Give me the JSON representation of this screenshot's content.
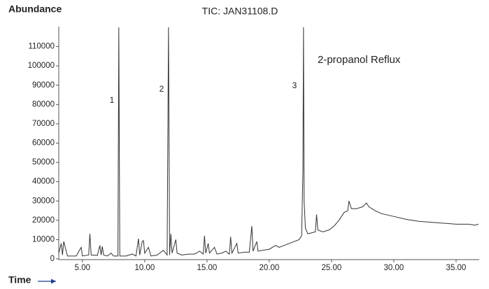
{
  "chart_data": {
    "type": "line",
    "title": "TIC: JAN31108.D",
    "y_label": "Abundance",
    "x_label": "Time",
    "color": "#333333",
    "axis_label_color": "#1f3f8f",
    "annotations": [
      "1",
      "2",
      "3",
      "2-propanol Reflux"
    ],
    "xlim": [
      3.1,
      36.8
    ],
    "ylim": [
      0,
      120000
    ],
    "xticks": [
      {
        "value": 5,
        "label": "5.00"
      },
      {
        "value": 10,
        "label": "10.00"
      },
      {
        "value": 15,
        "label": "15.00"
      },
      {
        "value": 20,
        "label": "20.00"
      },
      {
        "value": 25,
        "label": "25.00"
      },
      {
        "value": 30,
        "label": "30.00"
      },
      {
        "value": 35,
        "label": "35.00"
      }
    ],
    "yticks": [
      0,
      10000,
      20000,
      30000,
      40000,
      50000,
      60000,
      70000,
      80000,
      90000,
      100000,
      110000
    ],
    "x": [
      3.1,
      3.3,
      3.4,
      3.5,
      3.8,
      4.5,
      4.9,
      5.0,
      5.5,
      5.6,
      5.7,
      6.2,
      6.4,
      6.5,
      6.6,
      6.7,
      7.0,
      7.3,
      7.5,
      7.85,
      7.92,
      8.0,
      8.5,
      9.0,
      9.3,
      9.5,
      9.6,
      9.8,
      9.9,
      10.0,
      10.3,
      10.5,
      11.0,
      11.5,
      11.8,
      11.91,
      12.0,
      12.1,
      12.2,
      12.5,
      12.6,
      13.0,
      13.5,
      14.0,
      14.4,
      14.7,
      14.8,
      14.9,
      15.1,
      15.2,
      15.6,
      15.8,
      16.2,
      16.5,
      16.8,
      16.9,
      17.0,
      17.4,
      17.5,
      18.0,
      18.4,
      18.6,
      18.7,
      19.0,
      19.1,
      19.5,
      20.0,
      20.5,
      20.8,
      21.2,
      21.6,
      22.0,
      22.4,
      22.6,
      22.7,
      22.75,
      22.8,
      22.9,
      23.1,
      23.4,
      23.7,
      23.8,
      23.9,
      24.3,
      24.8,
      25.2,
      25.6,
      26.0,
      26.3,
      26.4,
      26.6,
      27.0,
      27.5,
      27.8,
      28.0,
      28.5,
      29.0,
      30.0,
      31.0,
      32.0,
      33.0,
      34.0,
      35.0,
      36.0,
      36.5,
      36.8
    ],
    "values": [
      3000,
      8000,
      2000,
      9000,
      1500,
      1500,
      6000,
      1500,
      2000,
      13000,
      2000,
      1800,
      7000,
      2000,
      6500,
      2000,
      1500,
      3000,
      1500,
      1500,
      120000,
      1500,
      1500,
      2500,
      1500,
      10500,
      2000,
      9000,
      9500,
      3000,
      6000,
      1500,
      2000,
      4500,
      2000,
      120000,
      2000,
      13000,
      3000,
      10000,
      3000,
      2000,
      2500,
      2500,
      4000,
      2500,
      12000,
      3000,
      8000,
      3000,
      6000,
      2500,
      3000,
      4000,
      2500,
      11500,
      3000,
      8000,
      3000,
      3500,
      3500,
      17000,
      4000,
      9000,
      4000,
      4500,
      5000,
      7000,
      6000,
      7000,
      8000,
      9000,
      10000,
      12000,
      45000,
      120000,
      30000,
      16000,
      13000,
      13500,
      14000,
      23000,
      15000,
      14000,
      15000,
      17000,
      20000,
      24000,
      25000,
      30000,
      26000,
      26000,
      27000,
      29000,
      27000,
      25000,
      23500,
      22000,
      20500,
      19500,
      19000,
      18500,
      18000,
      18000,
      17500,
      18000
    ]
  }
}
